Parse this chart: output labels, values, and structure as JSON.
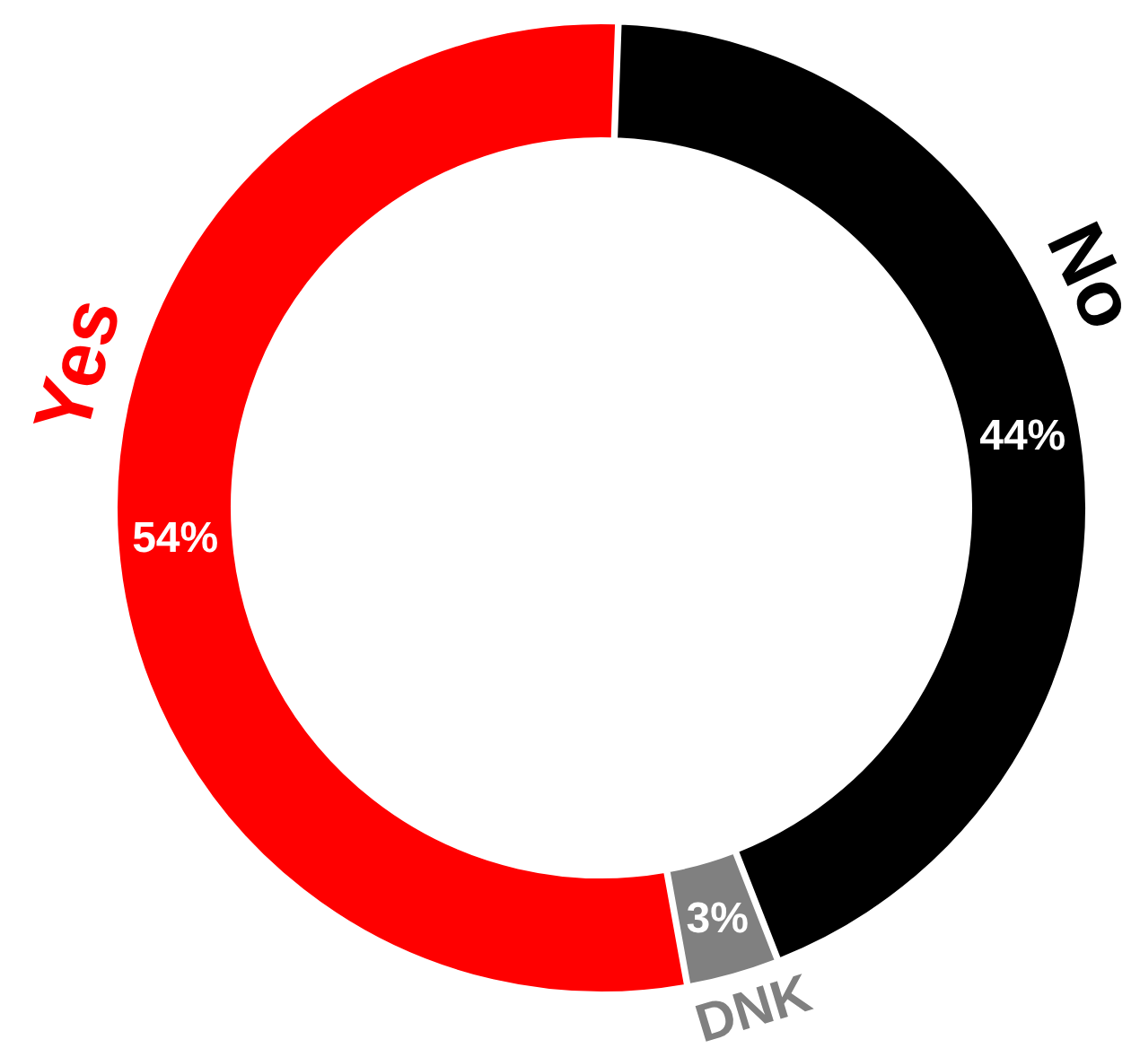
{
  "chart_data": {
    "type": "donut",
    "categories": [
      "No",
      "DNK",
      "Yes"
    ],
    "values": [
      44,
      3,
      54
    ],
    "colors": [
      "#000000",
      "#808080",
      "#ff0000"
    ],
    "value_labels": [
      "44%",
      "3%",
      "54%"
    ]
  }
}
